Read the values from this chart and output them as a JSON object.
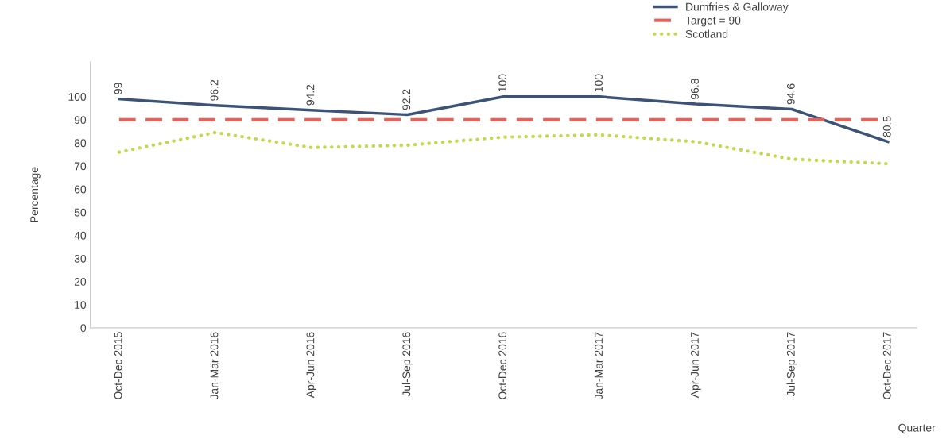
{
  "chart_data": {
    "type": "line",
    "xlabel": "Quarter",
    "ylabel": "Percentage",
    "categories": [
      "Oct-Dec 2015",
      "Jan-Mar 2016",
      "Apr-Jun 2016",
      "Jul-Sep 2016",
      "Oct-Dec 2016",
      "Jan-Mar 2017",
      "Apr-Jun 2017",
      "Jul-Sep 2017",
      "Oct-Dec 2017"
    ],
    "series": [
      {
        "name": "Dumfries & Galloway",
        "color": "#3b5377",
        "line_style": "solid",
        "values": [
          99,
          96.2,
          94.2,
          92.2,
          100,
          100,
          96.8,
          94.6,
          80.5
        ],
        "value_labels": [
          "99",
          "96.2",
          "94.2",
          "92.2",
          "100",
          "100",
          "96.8",
          "94.6",
          "80.5"
        ]
      },
      {
        "name": "Target = 90",
        "color": "#e8605a",
        "line_style": "dashed",
        "values": [
          90,
          90,
          90,
          90,
          90,
          90,
          90,
          90,
          90
        ]
      },
      {
        "name": "Scotland",
        "color": "#c5d84c",
        "line_style": "dotted",
        "values": [
          76,
          84.5,
          78,
          79,
          82.5,
          83.5,
          80.5,
          73,
          71
        ]
      }
    ],
    "ylim": [
      0,
      115
    ],
    "yticks": [
      0,
      10,
      20,
      30,
      40,
      50,
      60,
      70,
      80,
      90,
      100
    ],
    "grid": false,
    "legend": "top right",
    "marker": "none"
  }
}
